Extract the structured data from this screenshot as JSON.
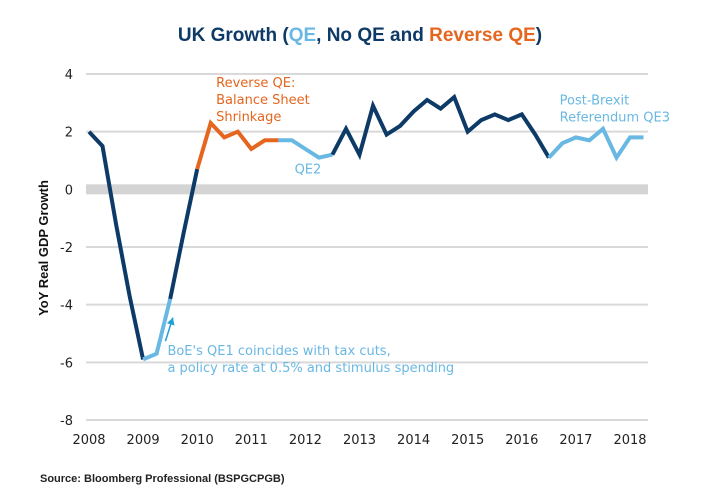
{
  "chart_data": {
    "type": "line",
    "title": {
      "parts": [
        {
          "text": "UK Growth (",
          "color_key": "no_qe"
        },
        {
          "text": "QE",
          "color_key": "qe"
        },
        {
          "text": ", No QE and ",
          "color_key": "no_qe"
        },
        {
          "text": "Reverse QE",
          "color_key": "reverse_qe"
        },
        {
          "text": ")",
          "color_key": "no_qe"
        }
      ]
    },
    "colors": {
      "no_qe": "#0d3a66",
      "qe": "#69b8e3",
      "reverse_qe": "#e5661f",
      "grid": "#d9d9d9",
      "zero_band": "#d4d4d4",
      "arrow": "#1fa0d8"
    },
    "xlabel": "",
    "ylabel": "YoY Real GDP Growth",
    "xlim": [
      2008,
      2018.4
    ],
    "ylim": [
      -8,
      4
    ],
    "yticks": [
      4,
      2,
      0,
      -2,
      -4,
      -6,
      -8
    ],
    "xticks": [
      "2008",
      "2009",
      "2010",
      "2011",
      "2012",
      "2013",
      "2014",
      "2015",
      "2016",
      "2017",
      "2018"
    ],
    "grid": true,
    "x": [
      2008.0,
      2008.25,
      2008.5,
      2008.75,
      2009.0,
      2009.25,
      2009.5,
      2009.75,
      2010.0,
      2010.25,
      2010.5,
      2010.75,
      2011.0,
      2011.25,
      2011.5,
      2011.75,
      2012.0,
      2012.25,
      2012.5,
      2012.75,
      2013.0,
      2013.25,
      2013.5,
      2013.75,
      2014.0,
      2014.25,
      2014.5,
      2014.75,
      2015.0,
      2015.25,
      2015.5,
      2015.75,
      2016.0,
      2016.25,
      2016.5,
      2016.75,
      2017.0,
      2017.25,
      2017.5,
      2017.75,
      2018.0,
      2018.25
    ],
    "y": [
      2.0,
      1.5,
      -1.2,
      -3.7,
      -5.9,
      -5.7,
      -3.8,
      -1.5,
      0.7,
      2.3,
      1.8,
      2.0,
      1.4,
      1.7,
      1.7,
      1.7,
      1.4,
      1.1,
      1.2,
      2.1,
      1.2,
      2.9,
      1.9,
      2.2,
      2.7,
      3.1,
      2.8,
      3.2,
      2.0,
      2.4,
      2.6,
      2.4,
      2.6,
      1.9,
      1.1,
      1.6,
      1.8,
      1.7,
      2.1,
      1.1,
      1.8,
      1.8
    ],
    "segments": [
      {
        "name": "No QE",
        "regime": "no_qe",
        "from_x": 2008.0,
        "to_x": 2009.0
      },
      {
        "name": "QE1",
        "regime": "qe",
        "from_x": 2009.0,
        "to_x": 2009.5
      },
      {
        "name": "No QE",
        "regime": "no_qe",
        "from_x": 2009.5,
        "to_x": 2010.0
      },
      {
        "name": "Reverse QE",
        "regime": "reverse_qe",
        "from_x": 2010.0,
        "to_x": 2011.5
      },
      {
        "name": "QE2",
        "regime": "qe",
        "from_x": 2011.5,
        "to_x": 2012.5
      },
      {
        "name": "No QE",
        "regime": "no_qe",
        "from_x": 2012.5,
        "to_x": 2016.5
      },
      {
        "name": "QE3",
        "regime": "qe",
        "from_x": 2016.5,
        "to_x": 2018.25
      }
    ],
    "annotations": [
      {
        "id": "reverse",
        "lines": [
          "Reverse QE:",
          "Balance Sheet",
          "Shrinkage"
        ],
        "color_key": "reverse_qe",
        "anchor_x": 2010.35,
        "anchor_y": 3.55
      },
      {
        "id": "qe2",
        "lines": [
          "QE2"
        ],
        "color_key": "qe",
        "anchor_x": 2011.8,
        "anchor_y": 0.55
      },
      {
        "id": "qe3",
        "lines": [
          "Post-Brexit",
          "Referendum QE3"
        ],
        "color_key": "qe",
        "anchor_x": 2016.7,
        "anchor_y": 2.95
      },
      {
        "id": "qe1",
        "lines": [
          "BoE's QE1 coincides with tax cuts,",
          "a policy rate at 0.5% and stimulus spending"
        ],
        "color_key": "qe",
        "anchor_x": 2009.45,
        "anchor_y": -5.75,
        "arrow_to": [
          2009.55,
          -4.45
        ]
      }
    ],
    "source": "Source: Bloomberg Professional (BSPGCPGB)"
  }
}
